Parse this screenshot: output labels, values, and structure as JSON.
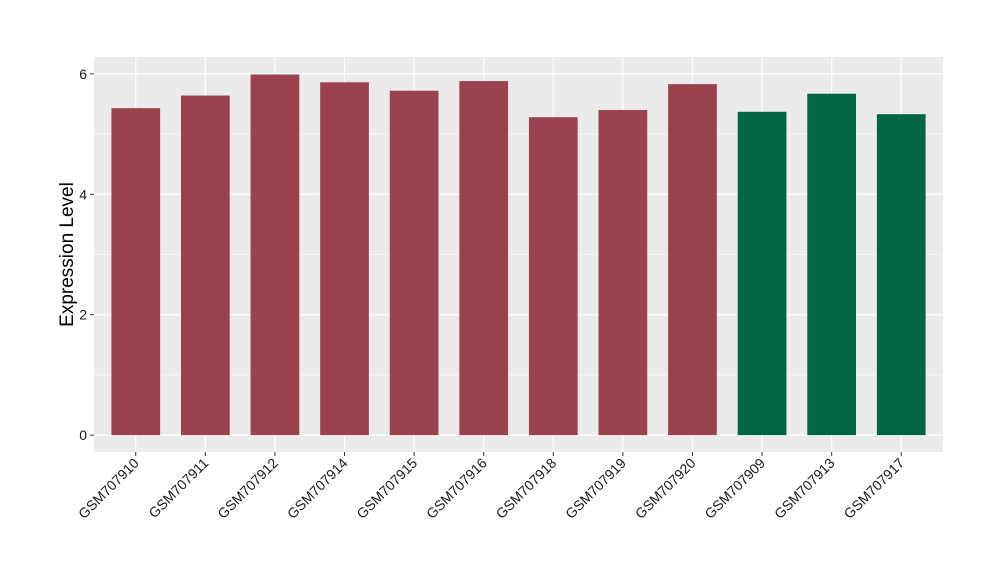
{
  "chart_data": {
    "type": "bar",
    "title": "",
    "xlabel": "",
    "ylabel": "Expression Level",
    "ylim": [
      -0.28,
      6.28
    ],
    "yticks": [
      0,
      2,
      4,
      6
    ],
    "grid": true,
    "legend": "none",
    "categories": [
      "GSM707910",
      "GSM707911",
      "GSM707912",
      "GSM707914",
      "GSM707915",
      "GSM707916",
      "GSM707918",
      "GSM707919",
      "GSM707920",
      "GSM707909",
      "GSM707913",
      "GSM707917"
    ],
    "values": [
      5.43,
      5.64,
      5.99,
      5.86,
      5.72,
      5.88,
      5.28,
      5.4,
      5.83,
      5.37,
      5.67,
      5.33
    ],
    "bar_colors": [
      "#9A4250",
      "#9A4250",
      "#9A4250",
      "#9A4250",
      "#9A4250",
      "#9A4250",
      "#9A4250",
      "#9A4250",
      "#9A4250",
      "#006644",
      "#006644",
      "#006644"
    ],
    "panel_background": "#EBEBEB",
    "grid_color": "#FFFFFF"
  }
}
